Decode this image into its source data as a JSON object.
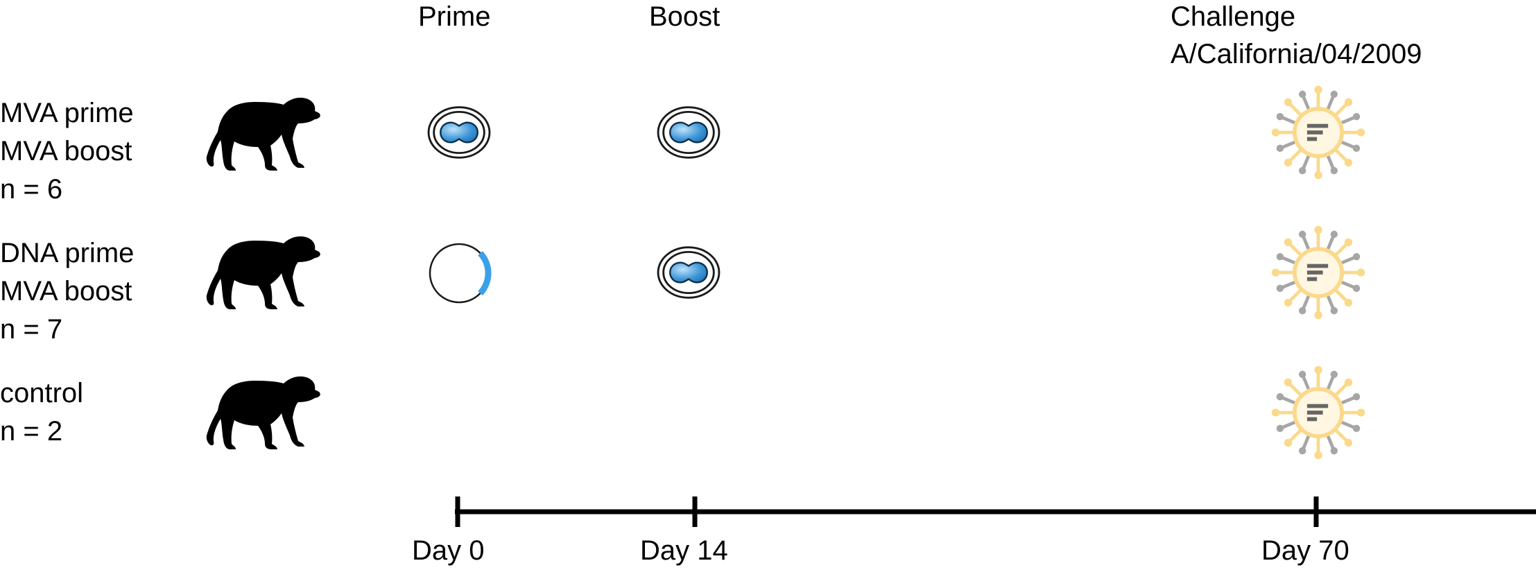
{
  "phases": {
    "prime": "Prime",
    "boost": "Boost",
    "challenge_line1": "Challenge",
    "challenge_line2": "A/California/04/2009"
  },
  "groups": [
    {
      "line1": "MVA prime",
      "line2": "MVA boost",
      "line3": "n = 6",
      "prime": "MVA",
      "boost": "MVA",
      "challenge": "influenza virus"
    },
    {
      "line1": "DNA prime",
      "line2": "MVA boost",
      "line3": "n = 7",
      "prime": "DNA",
      "boost": "MVA",
      "challenge": "influenza virus"
    },
    {
      "line1": "control",
      "line2": "n = 2",
      "prime": "none",
      "boost": "none",
      "challenge": "influenza virus"
    }
  ],
  "timeline": {
    "ticks": [
      "Day 0",
      "Day 14",
      "Day 70"
    ]
  },
  "colors": {
    "mva_fill": "#2f86c9",
    "dna_segment": "#3aa0ea",
    "virus_spike_gold": "#fbd98b",
    "virus_spike_grey": "#a6a6a6",
    "axis": "#000000"
  },
  "icons": [
    "monkey-silhouette-icon",
    "mva-virus-icon",
    "dna-plasmid-icon",
    "influenza-virus-icon"
  ]
}
